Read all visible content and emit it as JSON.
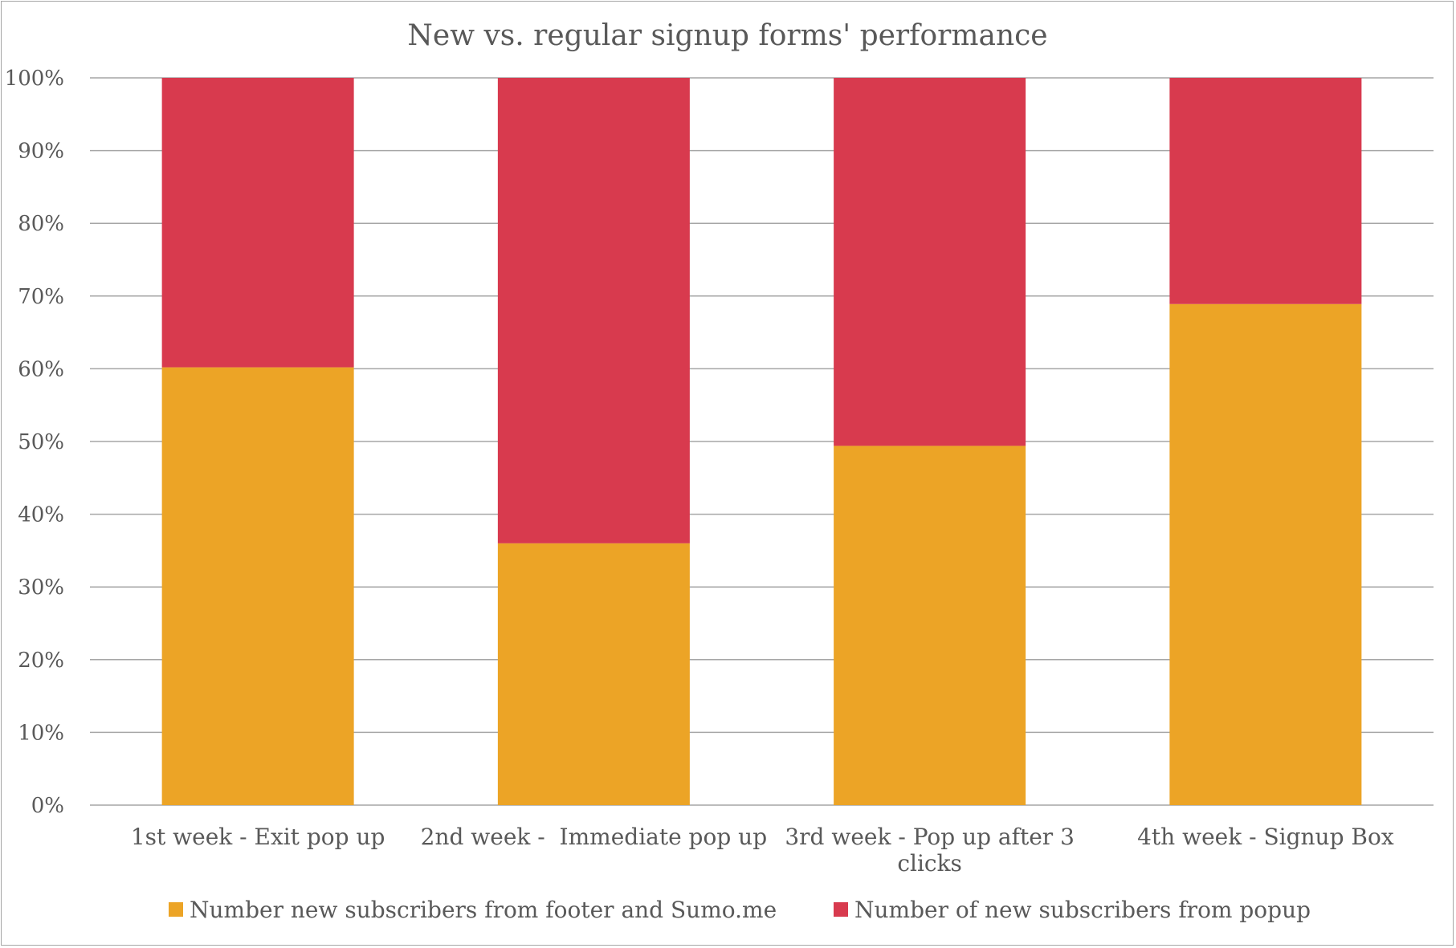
{
  "chart_data": {
    "type": "bar",
    "stacked": true,
    "percent_stacked": true,
    "title": "New vs. regular signup forms' performance",
    "categories": [
      [
        "1st week - Exit pop up"
      ],
      [
        "2nd week -  Immediate pop up"
      ],
      [
        "3rd week - Pop up after 3",
        "clicks"
      ],
      [
        "4th week - Signup Box"
      ]
    ],
    "series": [
      {
        "name": "Number new subscribers from footer and Sumo.me",
        "color": "#eca426",
        "values": [
          60.2,
          36.0,
          49.4,
          68.9
        ]
      },
      {
        "name": "Number of new subscribers from popup",
        "color": "#d83a4e",
        "values": [
          39.8,
          64.0,
          50.6,
          31.1
        ]
      }
    ],
    "y_ticks": [
      "0%",
      "10%",
      "20%",
      "30%",
      "40%",
      "50%",
      "60%",
      "70%",
      "80%",
      "90%",
      "100%"
    ],
    "ylim": [
      0,
      100
    ],
    "grid": true,
    "legend_position": "bottom",
    "colors": {
      "text": "#595959",
      "grid": "#a6a6a6"
    }
  }
}
